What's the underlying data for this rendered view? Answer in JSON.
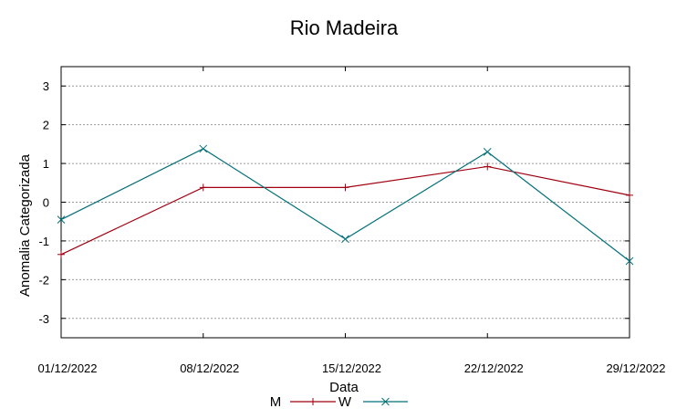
{
  "chart_data": {
    "type": "line",
    "title": "Rio Madeira",
    "xlabel": "Data",
    "ylabel": "Anomalia Categorizada",
    "categories": [
      "01/12/2022",
      "08/12/2022",
      "15/12/2022",
      "22/12/2022",
      "29/12/2022"
    ],
    "yticks": [
      "3",
      "2",
      "1",
      "0",
      "-1",
      "-2",
      "-3"
    ],
    "ylim": [
      -3.5,
      3.5
    ],
    "grid": true,
    "legend_position": "bottom",
    "series": [
      {
        "name": "M",
        "color": "#a0000f",
        "marker": "plus",
        "values": [
          -1.35,
          0.38,
          0.38,
          0.92,
          0.18
        ]
      },
      {
        "name": "W",
        "color": "#00707a",
        "marker": "cross",
        "values": [
          -0.45,
          1.38,
          -0.95,
          1.3,
          -1.52
        ]
      }
    ]
  }
}
